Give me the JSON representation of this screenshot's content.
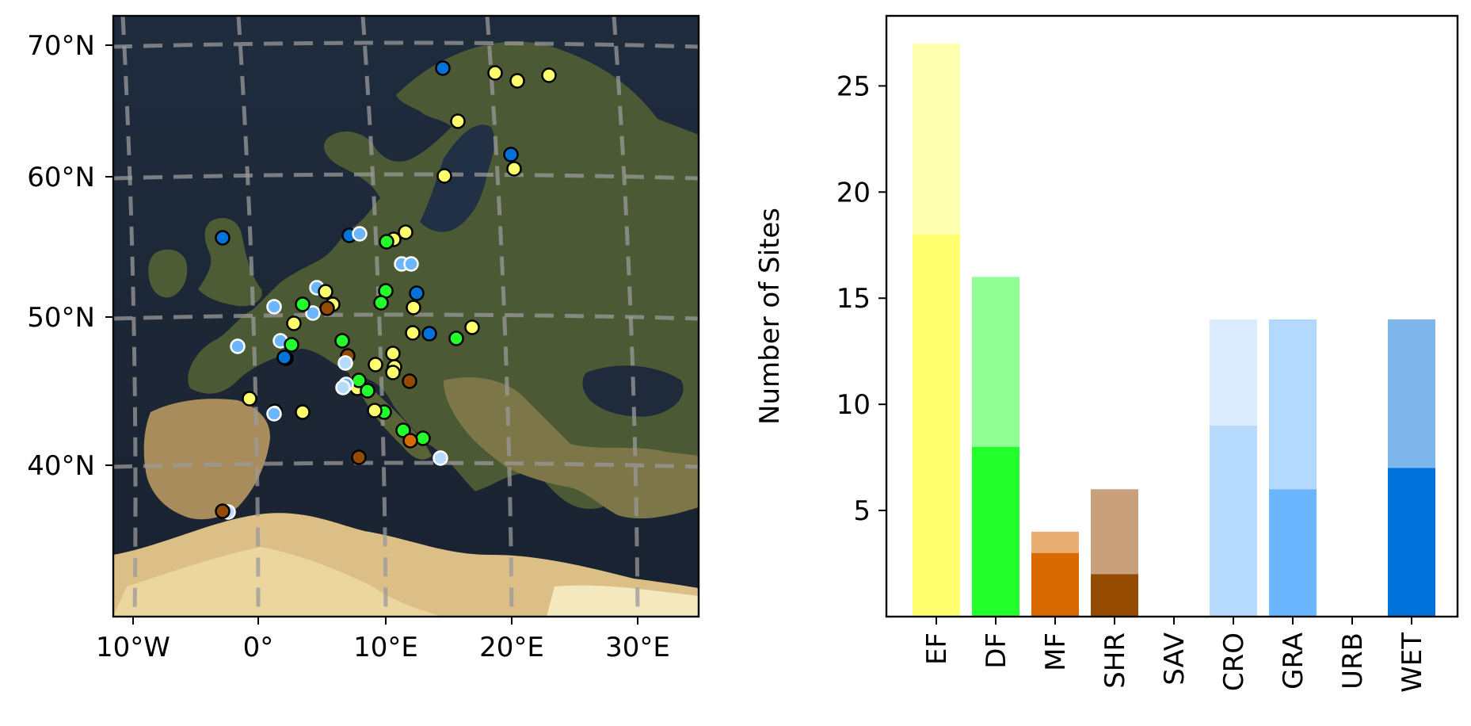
{
  "map_panel": {
    "lon_ticks": [
      "10°W",
      "0°",
      "10°E",
      "20°E",
      "30°E"
    ],
    "lat_ticks": [
      "70°N",
      "60°N",
      "50°N",
      "40°N"
    ],
    "lat_values": [
      70,
      60,
      50,
      40
    ],
    "colors": {
      "sea": "#1b2533",
      "land": "#4a5a33",
      "desert": "#e0c48a",
      "grid": "#9a9a9a"
    }
  },
  "chart_data": {
    "type": "bar",
    "stacked": true,
    "title": "",
    "xlabel": "",
    "ylabel": "Number of Sites",
    "ylim": [
      0,
      28.3
    ],
    "yticks": [
      5,
      10,
      15,
      20,
      25
    ],
    "categories": [
      "EF",
      "DF",
      "MF",
      "SHR",
      "SAV",
      "CRO",
      "GRA",
      "URB",
      "WET"
    ],
    "lower_values": [
      18,
      8,
      3,
      2,
      0,
      9,
      6,
      0,
      7
    ],
    "total_values": [
      27,
      16,
      4,
      6,
      0,
      14,
      14,
      0,
      14
    ],
    "lower_colors": [
      "#ffff6e",
      "#22ff2a",
      "#d96a00",
      "#944a00",
      "#ffffff",
      "#b7dbff",
      "#6bb6ff",
      "#ffffff",
      "#0073db"
    ],
    "upper_colors": [
      "#ffffb0",
      "#90ff94",
      "#e9ae72",
      "#c9a07c",
      "#ffffff",
      "#dbecff",
      "#b3d9ff",
      "#ffffff",
      "#7fb6ec"
    ]
  }
}
